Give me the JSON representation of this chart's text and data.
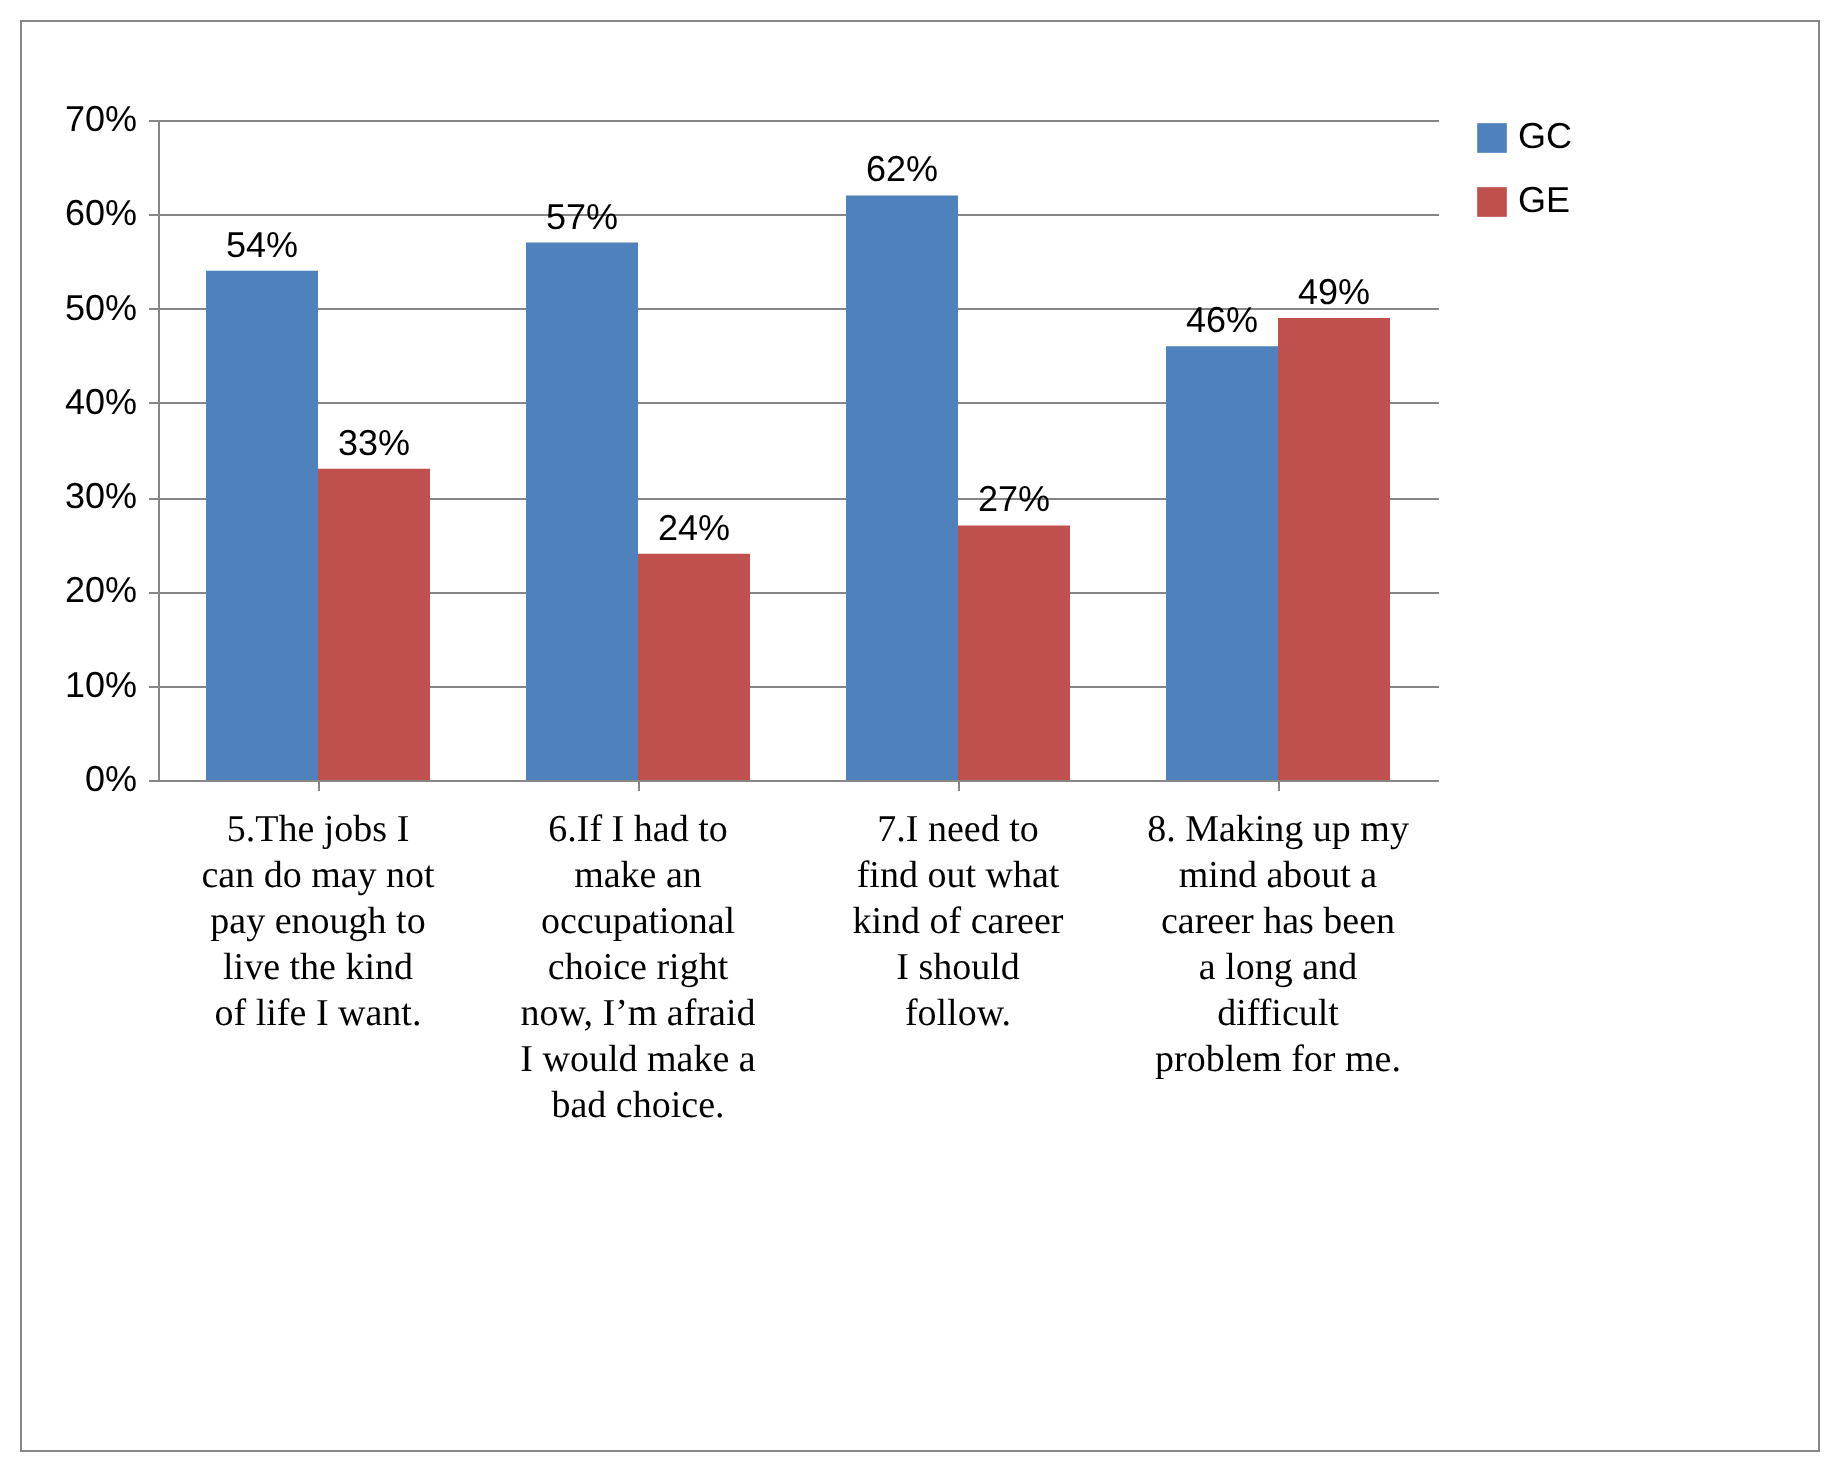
{
  "chart_data": {
    "type": "bar",
    "categories": [
      "5.The jobs I can do may not pay enough to live the kind of life I want.",
      "6.If I had to make an occupational choice right now, I’m afraid I would make a bad choice.",
      "7.I need to find out what kind of career I should follow.",
      "8. Making up my mind about a career has been a long and difficult problem for me."
    ],
    "series": [
      {
        "name": "GC",
        "color": "#4f81bd",
        "values": [
          54,
          57,
          62,
          46
        ],
        "value_labels": [
          "54%",
          "57%",
          "62%",
          "46%"
        ]
      },
      {
        "name": "GE",
        "color": "#c0504d",
        "values": [
          33,
          24,
          27,
          49
        ],
        "value_labels": [
          "33%",
          "24%",
          "27%",
          "49%"
        ]
      }
    ],
    "ylim": [
      0,
      70
    ],
    "yticks": [
      {
        "value": 0,
        "label": "0%"
      },
      {
        "value": 10,
        "label": "10%"
      },
      {
        "value": 20,
        "label": "20%"
      },
      {
        "value": 30,
        "label": "30%"
      },
      {
        "value": 40,
        "label": "40%"
      },
      {
        "value": 50,
        "label": "50%"
      },
      {
        "value": 60,
        "label": "60%"
      },
      {
        "value": 70,
        "label": "70%"
      }
    ],
    "grid": true,
    "legend": "right"
  }
}
